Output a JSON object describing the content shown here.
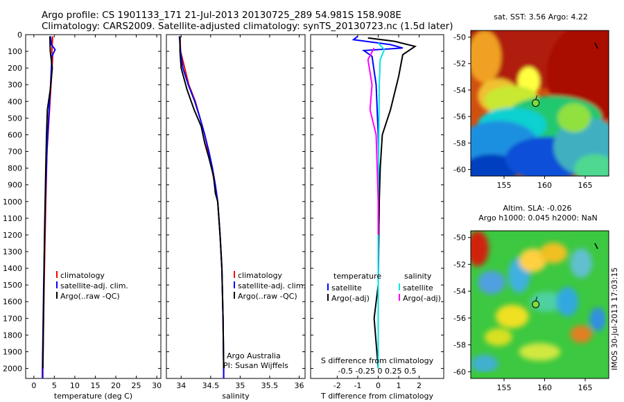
{
  "header": {
    "line1": "Argo profile: CS 1901133_171 21-Jul-2013 20130725_289 54.981S 158.908E",
    "line2": "Climatology: CARS2009. Satellite-adjusted climatology: synTS_20130723.nc (1.5d later)"
  },
  "side_label": "IMOS 30-Jul-2013 17:03:15",
  "depth_ticks": [
    0,
    100,
    200,
    300,
    400,
    500,
    600,
    700,
    800,
    900,
    1000,
    1100,
    1200,
    1300,
    1400,
    1500,
    1600,
    1700,
    1800,
    1900,
    2000
  ],
  "colors": {
    "climatology": "#ff0000",
    "satellite": "#0000ff",
    "argo": "#000000",
    "s_satellite": "#00e5e5",
    "s_argo": "#ff00ff"
  },
  "chart_data": [
    {
      "type": "line",
      "panel": "temperature",
      "xlabel": "temperature (deg C)",
      "xlim": [
        -2,
        31
      ],
      "ylim": [
        2060,
        0
      ],
      "xticks": [
        0,
        5,
        10,
        15,
        20,
        25,
        30
      ],
      "xtick_labels": [
        "0",
        "5",
        "10",
        "15",
        "20",
        "25",
        "30"
      ],
      "legend": [
        "climatology",
        "satellite-adj. clim.",
        "Argo(..raw -QC)"
      ],
      "series": [
        {
          "name": "climatology",
          "color": "#ff0000",
          "points": [
            [
              4.6,
              10
            ],
            [
              4.4,
              100
            ],
            [
              4.6,
              130
            ],
            [
              4.2,
              300
            ],
            [
              3.7,
              500
            ],
            [
              3.2,
              700
            ],
            [
              2.9,
              1000
            ],
            [
              2.5,
              1500
            ],
            [
              2.2,
              2000
            ],
            [
              2.2,
              2060
            ]
          ]
        },
        {
          "name": "satellite-adj. clim.",
          "color": "#0000ff",
          "points": [
            [
              4.1,
              10
            ],
            [
              4.3,
              60
            ],
            [
              5.2,
              90
            ],
            [
              4.4,
              130
            ],
            [
              4.1,
              300
            ],
            [
              3.6,
              500
            ],
            [
              3.2,
              700
            ],
            [
              2.8,
              1000
            ],
            [
              2.4,
              1500
            ],
            [
              2.1,
              2000
            ],
            [
              2.1,
              2060
            ]
          ]
        },
        {
          "name": "Argo(..raw -QC)",
          "color": "#000000",
          "points": [
            [
              3.9,
              10
            ],
            [
              4.0,
              100
            ],
            [
              4.5,
              200
            ],
            [
              4.0,
              330
            ],
            [
              3.3,
              450
            ],
            [
              3.1,
              600
            ],
            [
              2.9,
              800
            ],
            [
              2.6,
              1200
            ],
            [
              2.4,
              1600
            ],
            [
              2.2,
              2000
            ]
          ]
        }
      ]
    },
    {
      "type": "line",
      "panel": "salinity",
      "xlabel": "salinity",
      "xlim": [
        33.75,
        36.1
      ],
      "ylim": [
        2060,
        0
      ],
      "xticks": [
        34,
        34.5,
        35,
        35.5,
        36
      ],
      "xtick_labels": [
        "34",
        "34.5",
        "35",
        "35.5",
        "36"
      ],
      "legend": [
        "climatology",
        "satellite-adj. clim.",
        "Argo(..raw -QC)"
      ],
      "annotations": [
        "Argo Australia",
        "PI: Susan Wijffels"
      ],
      "series": [
        {
          "name": "climatology",
          "color": "#ff0000",
          "points": [
            [
              33.98,
              10
            ],
            [
              33.99,
              100
            ],
            [
              34.06,
              200
            ],
            [
              34.13,
              300
            ],
            [
              34.24,
              400
            ],
            [
              34.32,
              500
            ],
            [
              34.4,
              600
            ],
            [
              34.46,
              700
            ],
            [
              34.52,
              800
            ],
            [
              34.57,
              900
            ],
            [
              34.62,
              1000
            ],
            [
              34.66,
              1200
            ],
            [
              34.69,
              1400
            ],
            [
              34.71,
              1700
            ],
            [
              34.72,
              2000
            ],
            [
              34.72,
              2060
            ]
          ]
        },
        {
          "name": "satellite-adj. clim.",
          "color": "#0000ff",
          "points": [
            [
              33.97,
              10
            ],
            [
              33.99,
              100
            ],
            [
              34.03,
              200
            ],
            [
              34.12,
              300
            ],
            [
              34.23,
              400
            ],
            [
              34.32,
              500
            ],
            [
              34.4,
              600
            ],
            [
              34.47,
              700
            ],
            [
              34.53,
              800
            ],
            [
              34.58,
              900
            ],
            [
              34.62,
              1000
            ],
            [
              34.66,
              1200
            ],
            [
              34.69,
              1400
            ],
            [
              34.71,
              1700
            ],
            [
              34.72,
              2000
            ],
            [
              34.72,
              2060
            ]
          ]
        },
        {
          "name": "Argo(..raw -QC)",
          "color": "#000000",
          "points": [
            [
              33.98,
              10
            ],
            [
              33.98,
              100
            ],
            [
              34.0,
              200
            ],
            [
              34.1,
              330
            ],
            [
              34.22,
              450
            ],
            [
              34.34,
              550
            ],
            [
              34.4,
              650
            ],
            [
              34.48,
              750
            ],
            [
              34.55,
              850
            ],
            [
              34.58,
              950
            ],
            [
              34.62,
              1000
            ],
            [
              34.66,
              1200
            ],
            [
              34.69,
              1400
            ],
            [
              34.71,
              1700
            ],
            [
              34.72,
              2000
            ]
          ]
        }
      ]
    },
    {
      "type": "line",
      "panel": "difference",
      "xlabel": "T difference from climatology",
      "xlabel_top": "S difference from climatology",
      "xlim": [
        -3.3,
        3.2
      ],
      "ylim": [
        2060,
        0
      ],
      "xticks": [
        -2,
        -1,
        0,
        1,
        2
      ],
      "xtick_labels": [
        "-2",
        "-1",
        "0",
        "1",
        "2"
      ],
      "s_ticks_label": "-0.5  -0.25    0    0.25   0.5",
      "legend_temperature_title": "temperature",
      "legend_salinity_title": "salinity",
      "legend": [
        "satellite",
        "Argo(-adj)",
        "satellite",
        "Argo(-adj)"
      ],
      "series": [
        {
          "name": "T satellite",
          "color": "#0000ff",
          "points": [
            [
              -1.0,
              10
            ],
            [
              -1.2,
              30
            ],
            [
              0.6,
              60
            ],
            [
              1.2,
              80
            ],
            [
              -0.7,
              95
            ],
            [
              -0.3,
              130
            ],
            [
              -0.1,
              300
            ],
            [
              0.0,
              600
            ],
            [
              0.05,
              1000
            ],
            [
              0.0,
              1500
            ],
            [
              0.0,
              2000
            ]
          ]
        },
        {
          "name": "T Argo(-adj)",
          "color": "#000000",
          "points": [
            [
              -0.5,
              20
            ],
            [
              0.8,
              40
            ],
            [
              1.8,
              70
            ],
            [
              1.2,
              120
            ],
            [
              1.0,
              250
            ],
            [
              0.8,
              350
            ],
            [
              0.6,
              450
            ],
            [
              0.2,
              600
            ],
            [
              0.1,
              800
            ],
            [
              0.05,
              1000
            ],
            [
              0.0,
              1400
            ],
            [
              0.0,
              1500
            ],
            [
              -0.2,
              1700
            ],
            [
              0.0,
              2000
            ]
          ]
        },
        {
          "name": "S satellite",
          "color": "#00e5e5",
          "points": [
            [
              0.0,
              50
            ],
            [
              0.3,
              90
            ],
            [
              0.1,
              150
            ],
            [
              0.05,
              300
            ],
            [
              0.0,
              1000
            ],
            [
              0.0,
              2000
            ]
          ]
        },
        {
          "name": "S Argo(-adj)",
          "color": "#ff00ff",
          "points": [
            [
              -0.2,
              80
            ],
            [
              -0.5,
              150
            ],
            [
              -0.3,
              300
            ],
            [
              -0.4,
              450
            ],
            [
              -0.1,
              600
            ],
            [
              -0.05,
              800
            ],
            [
              0.0,
              1000
            ],
            [
              0.0,
              1200
            ]
          ]
        }
      ]
    },
    {
      "type": "heatmap",
      "panel": "sst_map",
      "title": "sat. SST: 3.56 Argo: 4.22",
      "xticks": [
        155,
        160,
        165
      ],
      "yticks": [
        -50,
        -52,
        -54,
        -56,
        -58,
        -60
      ],
      "xlim": [
        150.9,
        167.9
      ],
      "ylim": [
        -60.5,
        -49.5
      ],
      "float_position": [
        158.9,
        -54.98
      ]
    },
    {
      "type": "heatmap",
      "panel": "sla_map",
      "title_line1": "Altim. SLA: -0.026",
      "title_line2": "Argo h1000: 0.045 h2000: NaN",
      "xticks": [
        155,
        160,
        165
      ],
      "yticks": [
        -50,
        -52,
        -54,
        -56,
        -58,
        -60
      ],
      "xlim": [
        150.9,
        167.9
      ],
      "ylim": [
        -60.5,
        -49.5
      ],
      "float_position": [
        158.9,
        -54.98
      ]
    }
  ]
}
